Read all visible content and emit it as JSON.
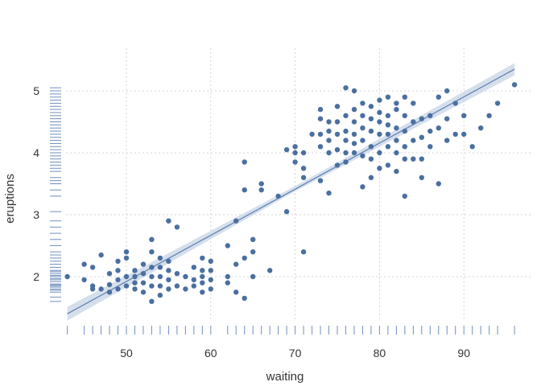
{
  "chart_data": {
    "type": "scatter",
    "title": "",
    "xlabel": "waiting",
    "ylabel": "eruptions",
    "xlim": [
      43,
      96
    ],
    "ylim": [
      1.6,
      5.1
    ],
    "xticks": [
      "50",
      "60",
      "70",
      "80",
      "90"
    ],
    "yticks": [
      "2",
      "3",
      "4",
      "5"
    ],
    "grid": true,
    "legend": "none",
    "colors": {
      "point": "#4a6fa0",
      "line": "#5b7fb0",
      "band": "#c7d4e6",
      "rug": "#6f8fbd",
      "grid": "#d3d3d3"
    },
    "trend": {
      "x": [
        43,
        96
      ],
      "y": [
        1.4,
        5.35
      ],
      "band_halfwidth": 0.07
    },
    "points": [
      [
        43,
        2.0
      ],
      [
        45,
        1.95
      ],
      [
        45,
        2.2
      ],
      [
        46,
        1.8
      ],
      [
        46,
        1.85
      ],
      [
        46,
        2.15
      ],
      [
        47,
        1.8
      ],
      [
        47,
        2.35
      ],
      [
        48,
        1.75
      ],
      [
        48,
        1.87
      ],
      [
        48,
        2.05
      ],
      [
        49,
        1.8
      ],
      [
        49,
        1.95
      ],
      [
        49,
        2.1
      ],
      [
        49,
        2.25
      ],
      [
        50,
        1.85
      ],
      [
        50,
        2.0
      ],
      [
        50,
        2.3
      ],
      [
        50,
        2.4
      ],
      [
        51,
        1.8
      ],
      [
        51,
        1.9
      ],
      [
        51,
        2.0
      ],
      [
        51,
        2.1
      ],
      [
        52,
        1.75
      ],
      [
        52,
        1.9
      ],
      [
        52,
        2.05
      ],
      [
        52,
        2.2
      ],
      [
        53,
        1.6
      ],
      [
        53,
        1.85
      ],
      [
        53,
        2.0
      ],
      [
        53,
        2.15
      ],
      [
        53,
        2.4
      ],
      [
        53,
        2.6
      ],
      [
        54,
        1.7
      ],
      [
        54,
        1.85
      ],
      [
        54,
        2.0
      ],
      [
        54,
        2.15
      ],
      [
        54,
        2.3
      ],
      [
        55,
        1.8
      ],
      [
        55,
        1.95
      ],
      [
        55,
        2.1
      ],
      [
        55,
        2.25
      ],
      [
        55,
        2.9
      ],
      [
        56,
        1.85
      ],
      [
        56,
        2.05
      ],
      [
        56,
        2.8
      ],
      [
        57,
        1.8
      ],
      [
        57,
        2.0
      ],
      [
        58,
        1.85
      ],
      [
        58,
        1.95
      ],
      [
        58,
        2.15
      ],
      [
        59,
        1.75
      ],
      [
        59,
        1.9
      ],
      [
        59,
        2.0
      ],
      [
        59,
        2.1
      ],
      [
        59,
        2.3
      ],
      [
        60,
        1.8
      ],
      [
        60,
        1.95
      ],
      [
        60,
        2.1
      ],
      [
        60,
        2.25
      ],
      [
        62,
        1.9
      ],
      [
        62,
        2.0
      ],
      [
        62,
        2.5
      ],
      [
        63,
        1.75
      ],
      [
        63,
        2.2
      ],
      [
        63,
        2.9
      ],
      [
        64,
        1.65
      ],
      [
        64,
        2.3
      ],
      [
        64,
        3.4
      ],
      [
        64,
        3.85
      ],
      [
        65,
        2.0
      ],
      [
        65,
        2.4
      ],
      [
        65,
        2.6
      ],
      [
        66,
        3.4
      ],
      [
        66,
        3.5
      ],
      [
        67,
        2.1
      ],
      [
        68,
        3.3
      ],
      [
        69,
        3.05
      ],
      [
        69,
        4.05
      ],
      [
        70,
        3.85
      ],
      [
        70,
        4.0
      ],
      [
        70,
        4.1
      ],
      [
        71,
        2.4
      ],
      [
        71,
        3.6
      ],
      [
        71,
        3.75
      ],
      [
        71,
        4.0
      ],
      [
        72,
        4.3
      ],
      [
        73,
        3.55
      ],
      [
        73,
        4.1
      ],
      [
        73,
        4.3
      ],
      [
        73,
        4.55
      ],
      [
        73,
        4.7
      ],
      [
        74,
        3.35
      ],
      [
        74,
        4.0
      ],
      [
        74,
        4.2
      ],
      [
        74,
        4.35
      ],
      [
        74,
        4.5
      ],
      [
        75,
        3.8
      ],
      [
        75,
        4.05
      ],
      [
        75,
        4.3
      ],
      [
        75,
        4.5
      ],
      [
        75,
        4.75
      ],
      [
        76,
        3.85
      ],
      [
        76,
        4.0
      ],
      [
        76,
        4.2
      ],
      [
        76,
        4.35
      ],
      [
        76,
        4.6
      ],
      [
        76,
        5.05
      ],
      [
        77,
        4.0
      ],
      [
        77,
        4.15
      ],
      [
        77,
        4.3
      ],
      [
        77,
        4.5
      ],
      [
        77,
        4.7
      ],
      [
        77,
        5.0
      ],
      [
        78,
        3.45
      ],
      [
        78,
        3.95
      ],
      [
        78,
        4.2
      ],
      [
        78,
        4.4
      ],
      [
        78,
        4.6
      ],
      [
        78,
        4.8
      ],
      [
        79,
        3.6
      ],
      [
        79,
        3.9
      ],
      [
        79,
        4.1
      ],
      [
        79,
        4.35
      ],
      [
        79,
        4.55
      ],
      [
        79,
        4.75
      ],
      [
        80,
        3.75
      ],
      [
        80,
        4.0
      ],
      [
        80,
        4.3
      ],
      [
        80,
        4.5
      ],
      [
        80,
        4.65
      ],
      [
        80,
        4.85
      ],
      [
        81,
        3.8
      ],
      [
        81,
        4.1
      ],
      [
        81,
        4.3
      ],
      [
        81,
        4.45
      ],
      [
        81,
        4.6
      ],
      [
        81,
        4.9
      ],
      [
        82,
        3.7
      ],
      [
        82,
        4.0
      ],
      [
        82,
        4.2
      ],
      [
        82,
        4.4
      ],
      [
        82,
        4.7
      ],
      [
        82,
        4.8
      ],
      [
        83,
        3.3
      ],
      [
        83,
        3.9
      ],
      [
        83,
        4.1
      ],
      [
        83,
        4.35
      ],
      [
        83,
        4.6
      ],
      [
        83,
        4.9
      ],
      [
        84,
        3.9
      ],
      [
        84,
        4.2
      ],
      [
        84,
        4.5
      ],
      [
        84,
        4.8
      ],
      [
        85,
        3.6
      ],
      [
        85,
        3.9
      ],
      [
        85,
        4.25
      ],
      [
        85,
        4.55
      ],
      [
        86,
        4.1
      ],
      [
        86,
        4.35
      ],
      [
        86,
        4.6
      ],
      [
        87,
        3.5
      ],
      [
        87,
        4.4
      ],
      [
        87,
        4.9
      ],
      [
        88,
        4.2
      ],
      [
        88,
        4.55
      ],
      [
        88,
        5.0
      ],
      [
        89,
        4.3
      ],
      [
        89,
        4.8
      ],
      [
        90,
        4.3
      ],
      [
        90,
        4.6
      ],
      [
        91,
        4.1
      ],
      [
        92,
        4.4
      ],
      [
        93,
        4.6
      ],
      [
        94,
        4.8
      ],
      [
        96,
        5.1
      ]
    ],
    "rug_x": [
      43,
      45,
      46,
      47,
      48,
      49,
      50,
      51,
      52,
      53,
      54,
      55,
      56,
      57,
      58,
      59,
      60,
      62,
      63,
      64,
      65,
      66,
      67,
      68,
      69,
      70,
      71,
      72,
      73,
      74,
      75,
      76,
      77,
      78,
      79,
      80,
      81,
      82,
      83,
      84,
      85,
      86,
      87,
      88,
      89,
      90,
      91,
      92,
      93,
      94,
      96
    ],
    "rug_y": [
      1.6,
      1.67,
      1.75,
      1.78,
      1.8,
      1.83,
      1.85,
      1.87,
      1.88,
      1.92,
      1.95,
      1.97,
      2.0,
      2.02,
      2.05,
      2.08,
      2.1,
      2.15,
      2.2,
      2.25,
      2.3,
      2.35,
      2.4,
      2.5,
      2.6,
      2.7,
      2.8,
      2.9,
      3.05,
      3.3,
      3.4,
      3.5,
      3.55,
      3.6,
      3.7,
      3.75,
      3.8,
      3.85,
      3.9,
      3.95,
      4.0,
      4.05,
      4.1,
      4.15,
      4.2,
      4.25,
      4.3,
      4.35,
      4.4,
      4.45,
      4.5,
      4.55,
      4.6,
      4.65,
      4.7,
      4.75,
      4.8,
      4.85,
      4.9,
      4.95,
      5.0,
      5.05
    ]
  }
}
